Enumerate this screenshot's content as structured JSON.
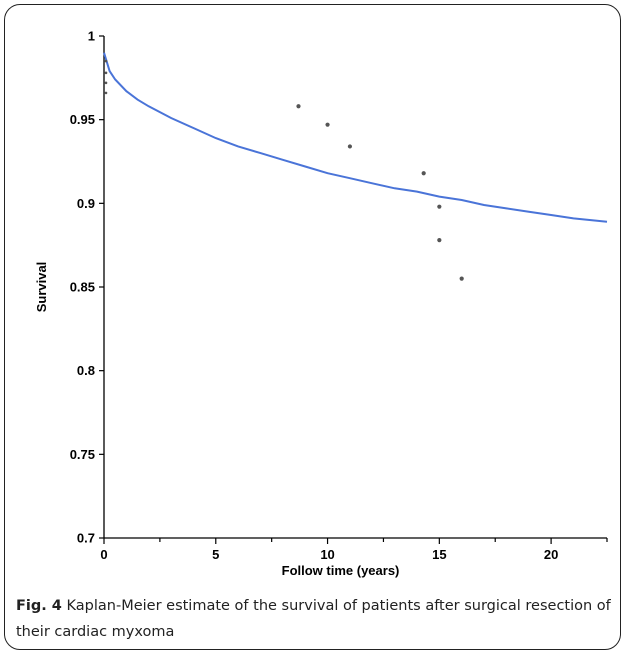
{
  "chart_data": {
    "type": "line",
    "xlabel": "Follow time (years)",
    "ylabel": "Survival",
    "xlim": [
      0,
      22.5
    ],
    "ylim": [
      0.7,
      1.0
    ],
    "xticks": [
      0,
      5,
      10,
      15,
      20
    ],
    "xtick_labels": [
      "0",
      "5",
      "10",
      "15",
      "20"
    ],
    "yticks": [
      0.7,
      0.75,
      0.8,
      0.85,
      0.9,
      0.95,
      1.0
    ],
    "ytick_labels": [
      "0.7",
      "0.75",
      "0.8",
      "0.85",
      "0.9",
      "0.95",
      "1"
    ],
    "series": [
      {
        "color": "#4a74d8",
        "x": [
          0,
          0.25,
          0.5,
          1,
          1.5,
          2,
          3,
          4,
          5,
          6,
          7,
          8,
          9,
          10,
          11,
          12,
          13,
          14,
          15,
          16,
          17,
          18,
          19,
          20,
          21,
          22.5
        ],
        "y": [
          0.99,
          0.979,
          0.974,
          0.967,
          0.962,
          0.958,
          0.951,
          0.945,
          0.939,
          0.934,
          0.93,
          0.926,
          0.922,
          0.918,
          0.915,
          0.912,
          0.909,
          0.907,
          0.904,
          0.902,
          0.899,
          0.897,
          0.895,
          0.893,
          0.891,
          0.889
        ]
      }
    ],
    "censored_points": {
      "x": [
        0,
        0,
        0,
        0,
        8.7,
        10,
        11,
        14.3,
        15,
        15,
        16
      ],
      "y": [
        0.985,
        0.978,
        0.972,
        0.966,
        0.958,
        0.947,
        0.934,
        0.918,
        0.898,
        0.878,
        0.855
      ]
    }
  },
  "caption": {
    "label": "Fig. 4",
    "text": " Kaplan-Meier estimate of the survival of patients after surgical resection of their cardiac myxoma"
  }
}
